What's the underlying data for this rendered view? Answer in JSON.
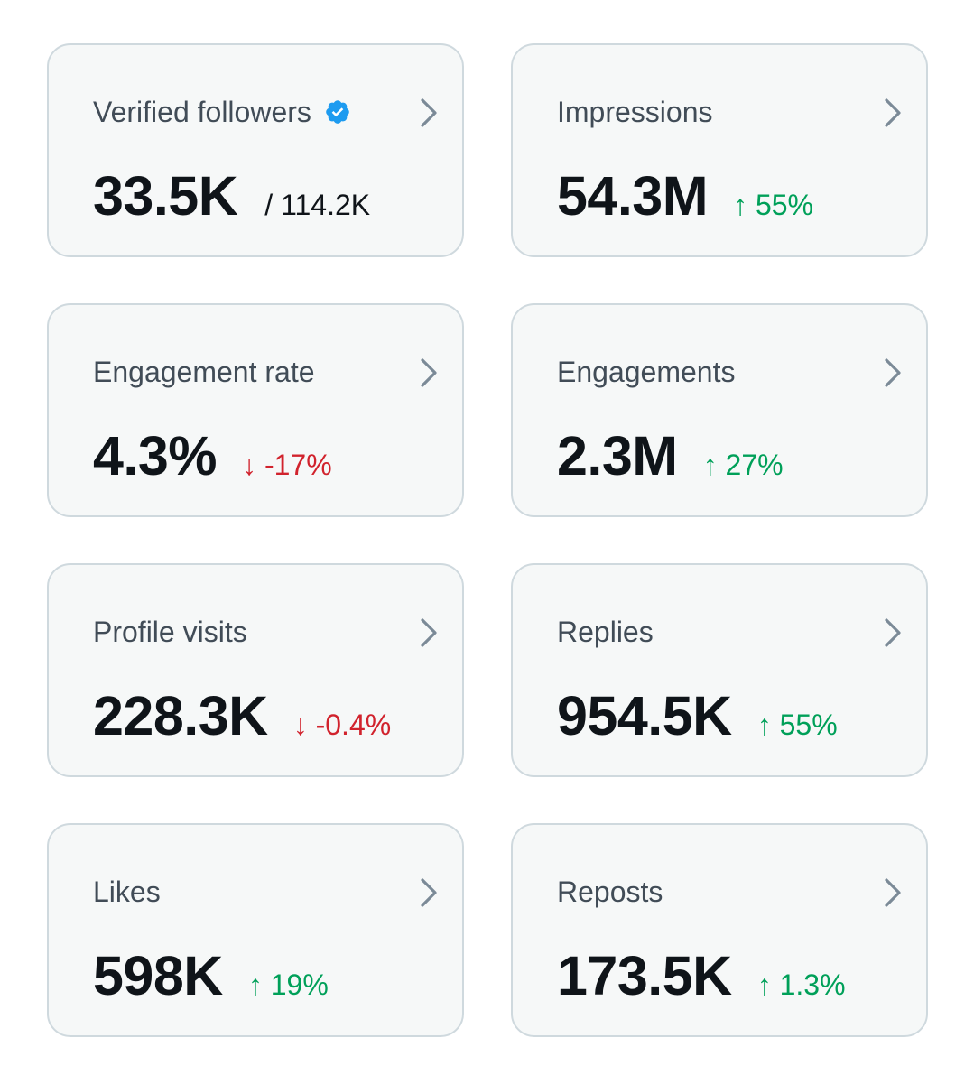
{
  "colors": {
    "card_bg": "#f6f8f8",
    "card_border": "#cfd9de",
    "title_text": "#414c57",
    "value_text": "#0f1419",
    "up": "#00a059",
    "down": "#d1232d",
    "verified_badge": "#1d9bf0",
    "chevron": "#7b8a97"
  },
  "cards": [
    {
      "title": "Verified followers",
      "value": "33.5K",
      "sub": "/ 114.2K",
      "verified_icon": "verified-badge-icon"
    },
    {
      "title": "Impressions",
      "value": "54.3M",
      "change": "↑ 55%",
      "direction": "up"
    },
    {
      "title": "Engagement rate",
      "value": "4.3%",
      "change": "↓ -17%",
      "direction": "down"
    },
    {
      "title": "Engagements",
      "value": "2.3M",
      "change": "↑ 27%",
      "direction": "up"
    },
    {
      "title": "Profile visits",
      "value": "228.3K",
      "change": "↓ -0.4%",
      "direction": "down"
    },
    {
      "title": "Replies",
      "value": "954.5K",
      "change": "↑ 55%",
      "direction": "up"
    },
    {
      "title": "Likes",
      "value": "598K",
      "change": "↑ 19%",
      "direction": "up"
    },
    {
      "title": "Reposts",
      "value": "173.5K",
      "change": "↑ 1.3%",
      "direction": "up"
    }
  ],
  "icons": {
    "chevron": "chevron-right-icon",
    "verified": "verified-badge-icon"
  }
}
